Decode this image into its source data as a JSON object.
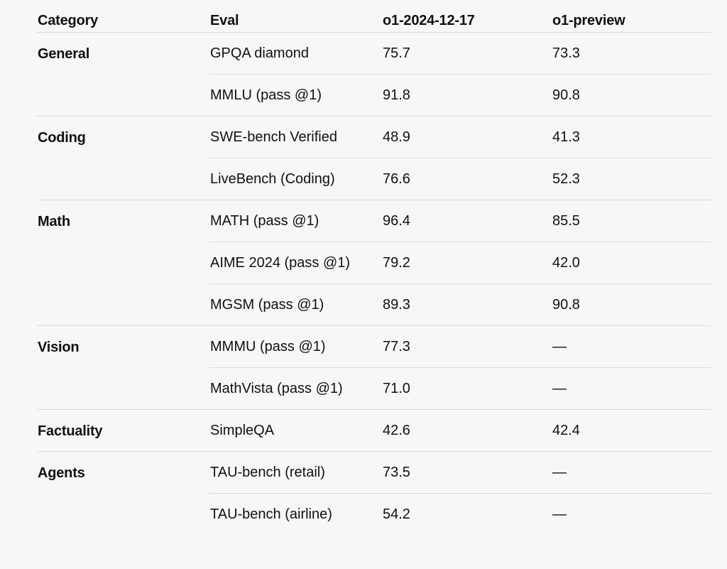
{
  "columns": {
    "category": "Category",
    "eval": "Eval",
    "model_a": "o1-2024-12-17",
    "model_b": "o1-preview"
  },
  "groups": [
    {
      "category": "General",
      "rows": [
        {
          "eval": "GPQA diamond",
          "a": "75.7",
          "b": "73.3"
        },
        {
          "eval": "MMLU (pass @1)",
          "a": "91.8",
          "b": "90.8"
        }
      ]
    },
    {
      "category": "Coding",
      "rows": [
        {
          "eval": "SWE-bench Verified",
          "a": "48.9",
          "b": "41.3"
        },
        {
          "eval": "LiveBench (Coding)",
          "a": "76.6",
          "b": "52.3"
        }
      ]
    },
    {
      "category": "Math",
      "rows": [
        {
          "eval": "MATH (pass @1)",
          "a": "96.4",
          "b": "85.5"
        },
        {
          "eval": "AIME 2024 (pass @1)",
          "a": "79.2",
          "b": "42.0"
        },
        {
          "eval": "MGSM (pass @1)",
          "a": "89.3",
          "b": "90.8"
        }
      ]
    },
    {
      "category": "Vision",
      "rows": [
        {
          "eval": "MMMU (pass @1)",
          "a": "77.3",
          "b": "—"
        },
        {
          "eval": "MathVista (pass @1)",
          "a": "71.0",
          "b": "—"
        }
      ]
    },
    {
      "category": "Factuality",
      "rows": [
        {
          "eval": "SimpleQA",
          "a": "42.6",
          "b": "42.4"
        }
      ]
    },
    {
      "category": "Agents",
      "rows": [
        {
          "eval": "TAU-bench (retail)",
          "a": "73.5",
          "b": "—"
        },
        {
          "eval": "TAU-bench (airline)",
          "a": "54.2",
          "b": "—"
        }
      ]
    }
  ]
}
